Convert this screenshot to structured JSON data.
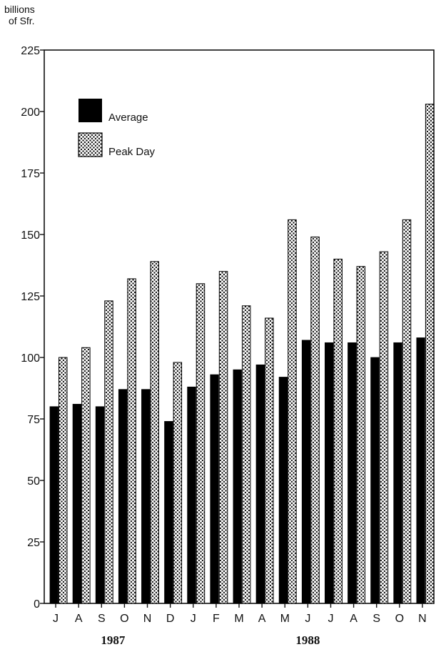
{
  "chart_data": {
    "type": "bar",
    "ylabel_line1": "billions",
    "ylabel_line2": "of Sfr.",
    "ylim": [
      0,
      225
    ],
    "yticks": [
      0,
      25,
      50,
      75,
      100,
      125,
      150,
      175,
      200,
      225
    ],
    "categories": [
      "J",
      "A",
      "S",
      "O",
      "N",
      "D",
      "J",
      "F",
      "M",
      "A",
      "M",
      "J",
      "J",
      "A",
      "S",
      "O",
      "N"
    ],
    "year_labels": [
      {
        "label": "1987",
        "start_index": 0,
        "end_index": 5
      },
      {
        "label": "1988",
        "start_index": 6,
        "end_index": 16
      }
    ],
    "series": [
      {
        "name": "Average",
        "color": "#000000",
        "pattern": "solid",
        "values": [
          80,
          81,
          80,
          87,
          87,
          74,
          88,
          93,
          95,
          97,
          92,
          107,
          106,
          106,
          100,
          106,
          108
        ]
      },
      {
        "name": "Peak Day",
        "color": "#ffffff",
        "pattern": "dotted",
        "values": [
          100,
          104,
          123,
          132,
          139,
          98,
          130,
          135,
          121,
          116,
          156,
          149,
          140,
          137,
          143,
          156,
          203
        ]
      }
    ],
    "legend_position": "top-left",
    "grid": false
  }
}
